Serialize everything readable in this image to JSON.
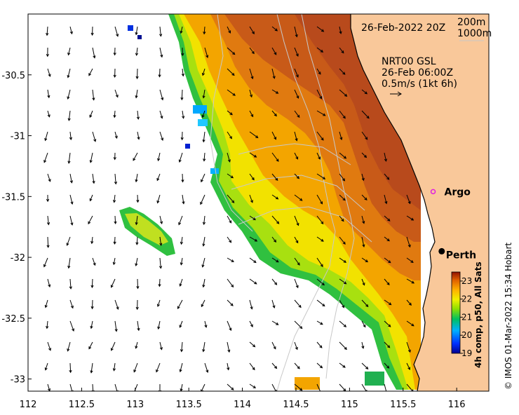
{
  "map": {
    "date_label": "26-Feb-2022 20Z",
    "contour_label_1": "200m",
    "contour_label_2": "1000m",
    "current_title": "NRT00 GSL",
    "current_time": "26-Feb 06:00Z",
    "current_scale": "0.5m/s (1kt 6h)",
    "places": [
      {
        "name": "Argo",
        "lon": 115.78,
        "lat": -31.46,
        "marker": "circle-open",
        "color": "#e020e0"
      },
      {
        "name": "Perth",
        "lon": 115.86,
        "lat": -31.95,
        "marker": "dot",
        "color": "#000000"
      }
    ],
    "credit": "© IMOS 01-Mar-2022 15:34 Hobart",
    "colors": {
      "land": "#f9c89a",
      "ocean_nodata": "#ffffff"
    }
  },
  "axes": {
    "x_ticks": [
      "112",
      "112.5",
      "113",
      "113.5",
      "114",
      "114.5",
      "115",
      "115.5",
      "116"
    ],
    "y_ticks": [
      "-30.5",
      "-31",
      "-31.5",
      "-32",
      "-32.5",
      "-33"
    ],
    "x_range": [
      112,
      116.3
    ],
    "y_range": [
      -33.1,
      -30.0
    ]
  },
  "colorbar": {
    "title": "4h comp, p50, All Sats",
    "labels": [
      "23",
      "22",
      "21",
      "20",
      "19"
    ],
    "range": [
      19,
      23.5
    ]
  }
}
